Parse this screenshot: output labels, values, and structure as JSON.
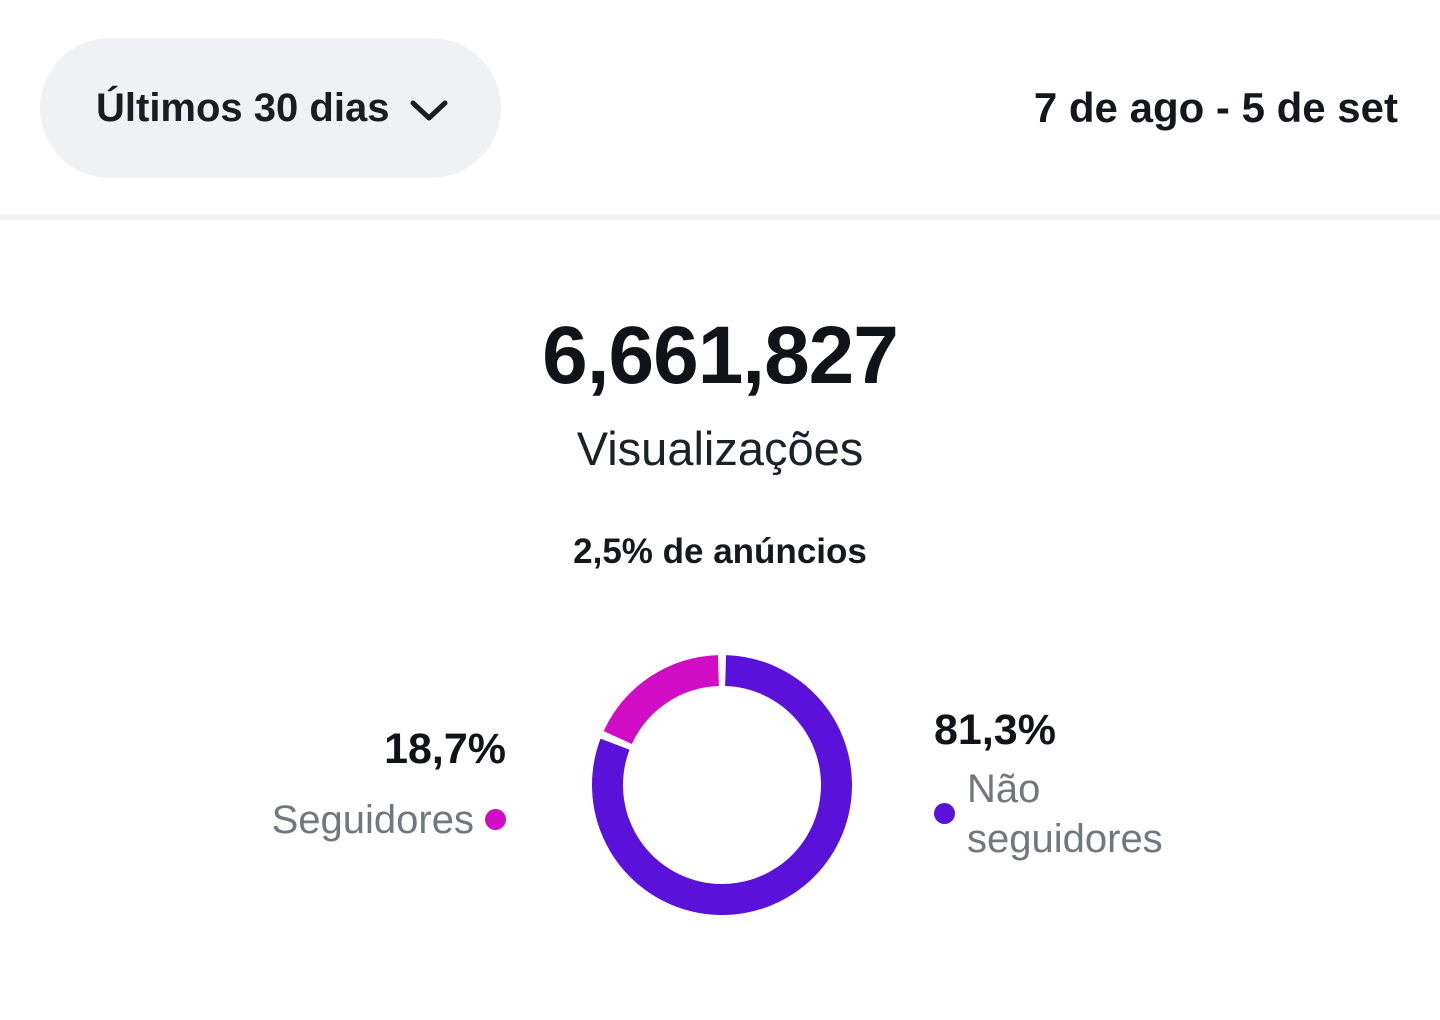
{
  "header": {
    "date_filter_label": "Últimos 30 dias",
    "date_range": "7 de ago - 5 de set"
  },
  "stats": {
    "views_value": "6,661,827",
    "views_label": "Visualizações",
    "ads_note": "2,5% de anúncios"
  },
  "chart_data": {
    "type": "pie",
    "donut": true,
    "start_angle_deg": 0,
    "clockwise": true,
    "segment_gap_deg": 1.8,
    "series": [
      {
        "name": "Não seguidores",
        "value": 81.3,
        "percent_label": "81,3%",
        "color": "#5a11da"
      },
      {
        "name": "Seguidores",
        "value": 18.7,
        "percent_label": "18,7%",
        "color": "#d00cc5"
      }
    ]
  },
  "colors": {
    "text_dark": "#14171b",
    "text_gray": "#70777e",
    "pill_bg": "#f0f1f4",
    "divider": "#f2f3f5"
  }
}
